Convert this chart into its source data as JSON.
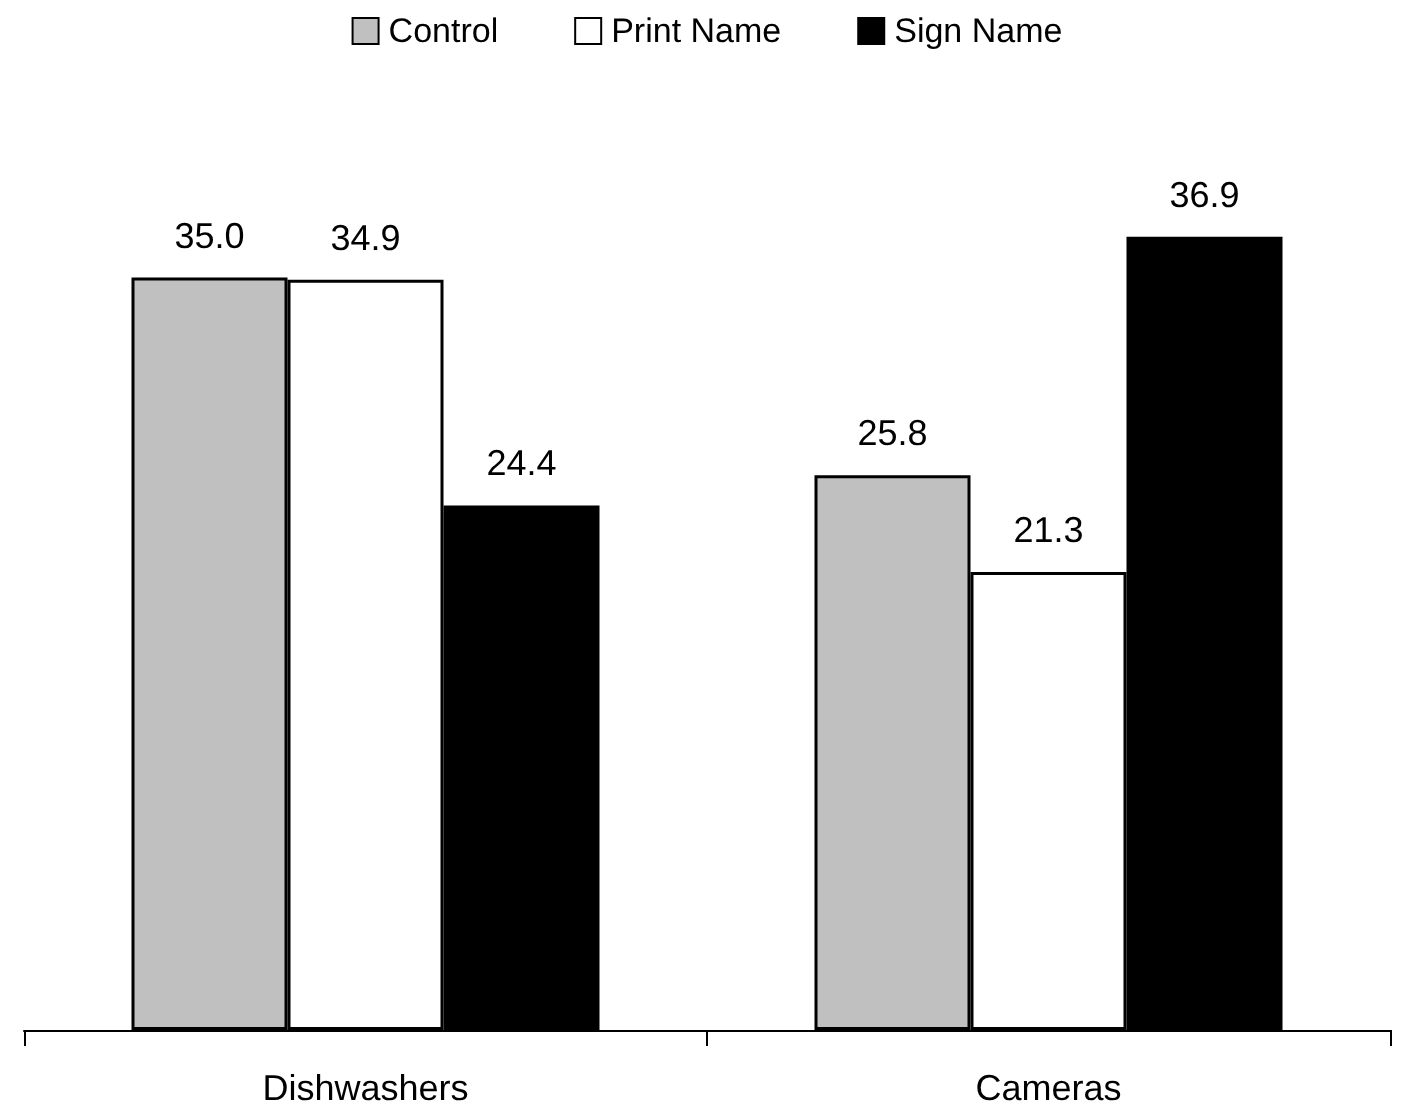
{
  "chart_data": {
    "type": "bar",
    "categories": [
      "Dishwashers",
      "Cameras"
    ],
    "series": [
      {
        "name": "Control",
        "color": "#c0c0c0",
        "values": [
          35.0,
          25.8
        ],
        "value_labels": [
          "35.0",
          "25.8"
        ]
      },
      {
        "name": "Print Name",
        "color": "#ffffff",
        "values": [
          34.9,
          21.3
        ],
        "value_labels": [
          "34.9",
          "21.3"
        ]
      },
      {
        "name": "Sign Name",
        "color": "#000000",
        "values": [
          24.4,
          36.9
        ],
        "value_labels": [
          "24.4",
          "36.9"
        ]
      }
    ],
    "legend": "top"
  }
}
